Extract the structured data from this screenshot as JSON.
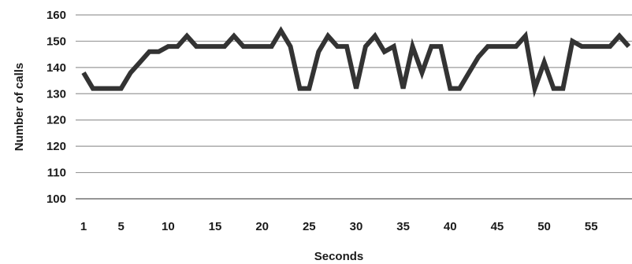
{
  "chart_data": {
    "type": "line",
    "xlabel": "Seconds",
    "ylabel": "Number of calls",
    "y_tick_labels": [
      "160",
      "150",
      "140",
      "130",
      "120",
      "120",
      "110",
      "100"
    ],
    "x_tick_labels": [
      "1",
      "5",
      "10",
      "15",
      "20",
      "25",
      "30",
      "35",
      "40",
      "45",
      "50",
      "55"
    ],
    "x_ticks": [
      1,
      5,
      10,
      15,
      20,
      25,
      30,
      35,
      40,
      45,
      50,
      55
    ],
    "xlim": [
      0,
      59
    ],
    "grid": true,
    "series": [
      {
        "x": [
          1,
          2,
          3,
          4,
          5,
          6,
          7,
          8,
          9,
          10,
          11,
          12,
          13,
          14,
          15,
          16,
          17,
          18,
          19,
          20,
          21,
          22,
          23,
          24,
          25,
          26,
          27,
          28,
          29,
          30,
          31,
          32,
          33,
          34,
          35,
          36,
          37,
          38,
          39,
          40,
          41,
          42,
          43,
          44,
          45,
          46,
          47,
          48,
          49,
          50,
          51,
          52,
          53,
          54,
          55,
          56,
          57,
          58,
          59
        ],
        "values": [
          138,
          132,
          132,
          132,
          132,
          138,
          142,
          146,
          146,
          148,
          148,
          152,
          148,
          148,
          148,
          148,
          152,
          148,
          148,
          148,
          148,
          154,
          148,
          132,
          132,
          146,
          152,
          148,
          148,
          132,
          148,
          152,
          146,
          148,
          132,
          148,
          138,
          148,
          148,
          132,
          132,
          138,
          144,
          148,
          148,
          148,
          148,
          152,
          132,
          142,
          132,
          132,
          150,
          148,
          148,
          148,
          148,
          152,
          148
        ]
      }
    ],
    "colors": {
      "line": "#333333",
      "grid": "#9a9a9a",
      "background": "#ffffff"
    }
  }
}
